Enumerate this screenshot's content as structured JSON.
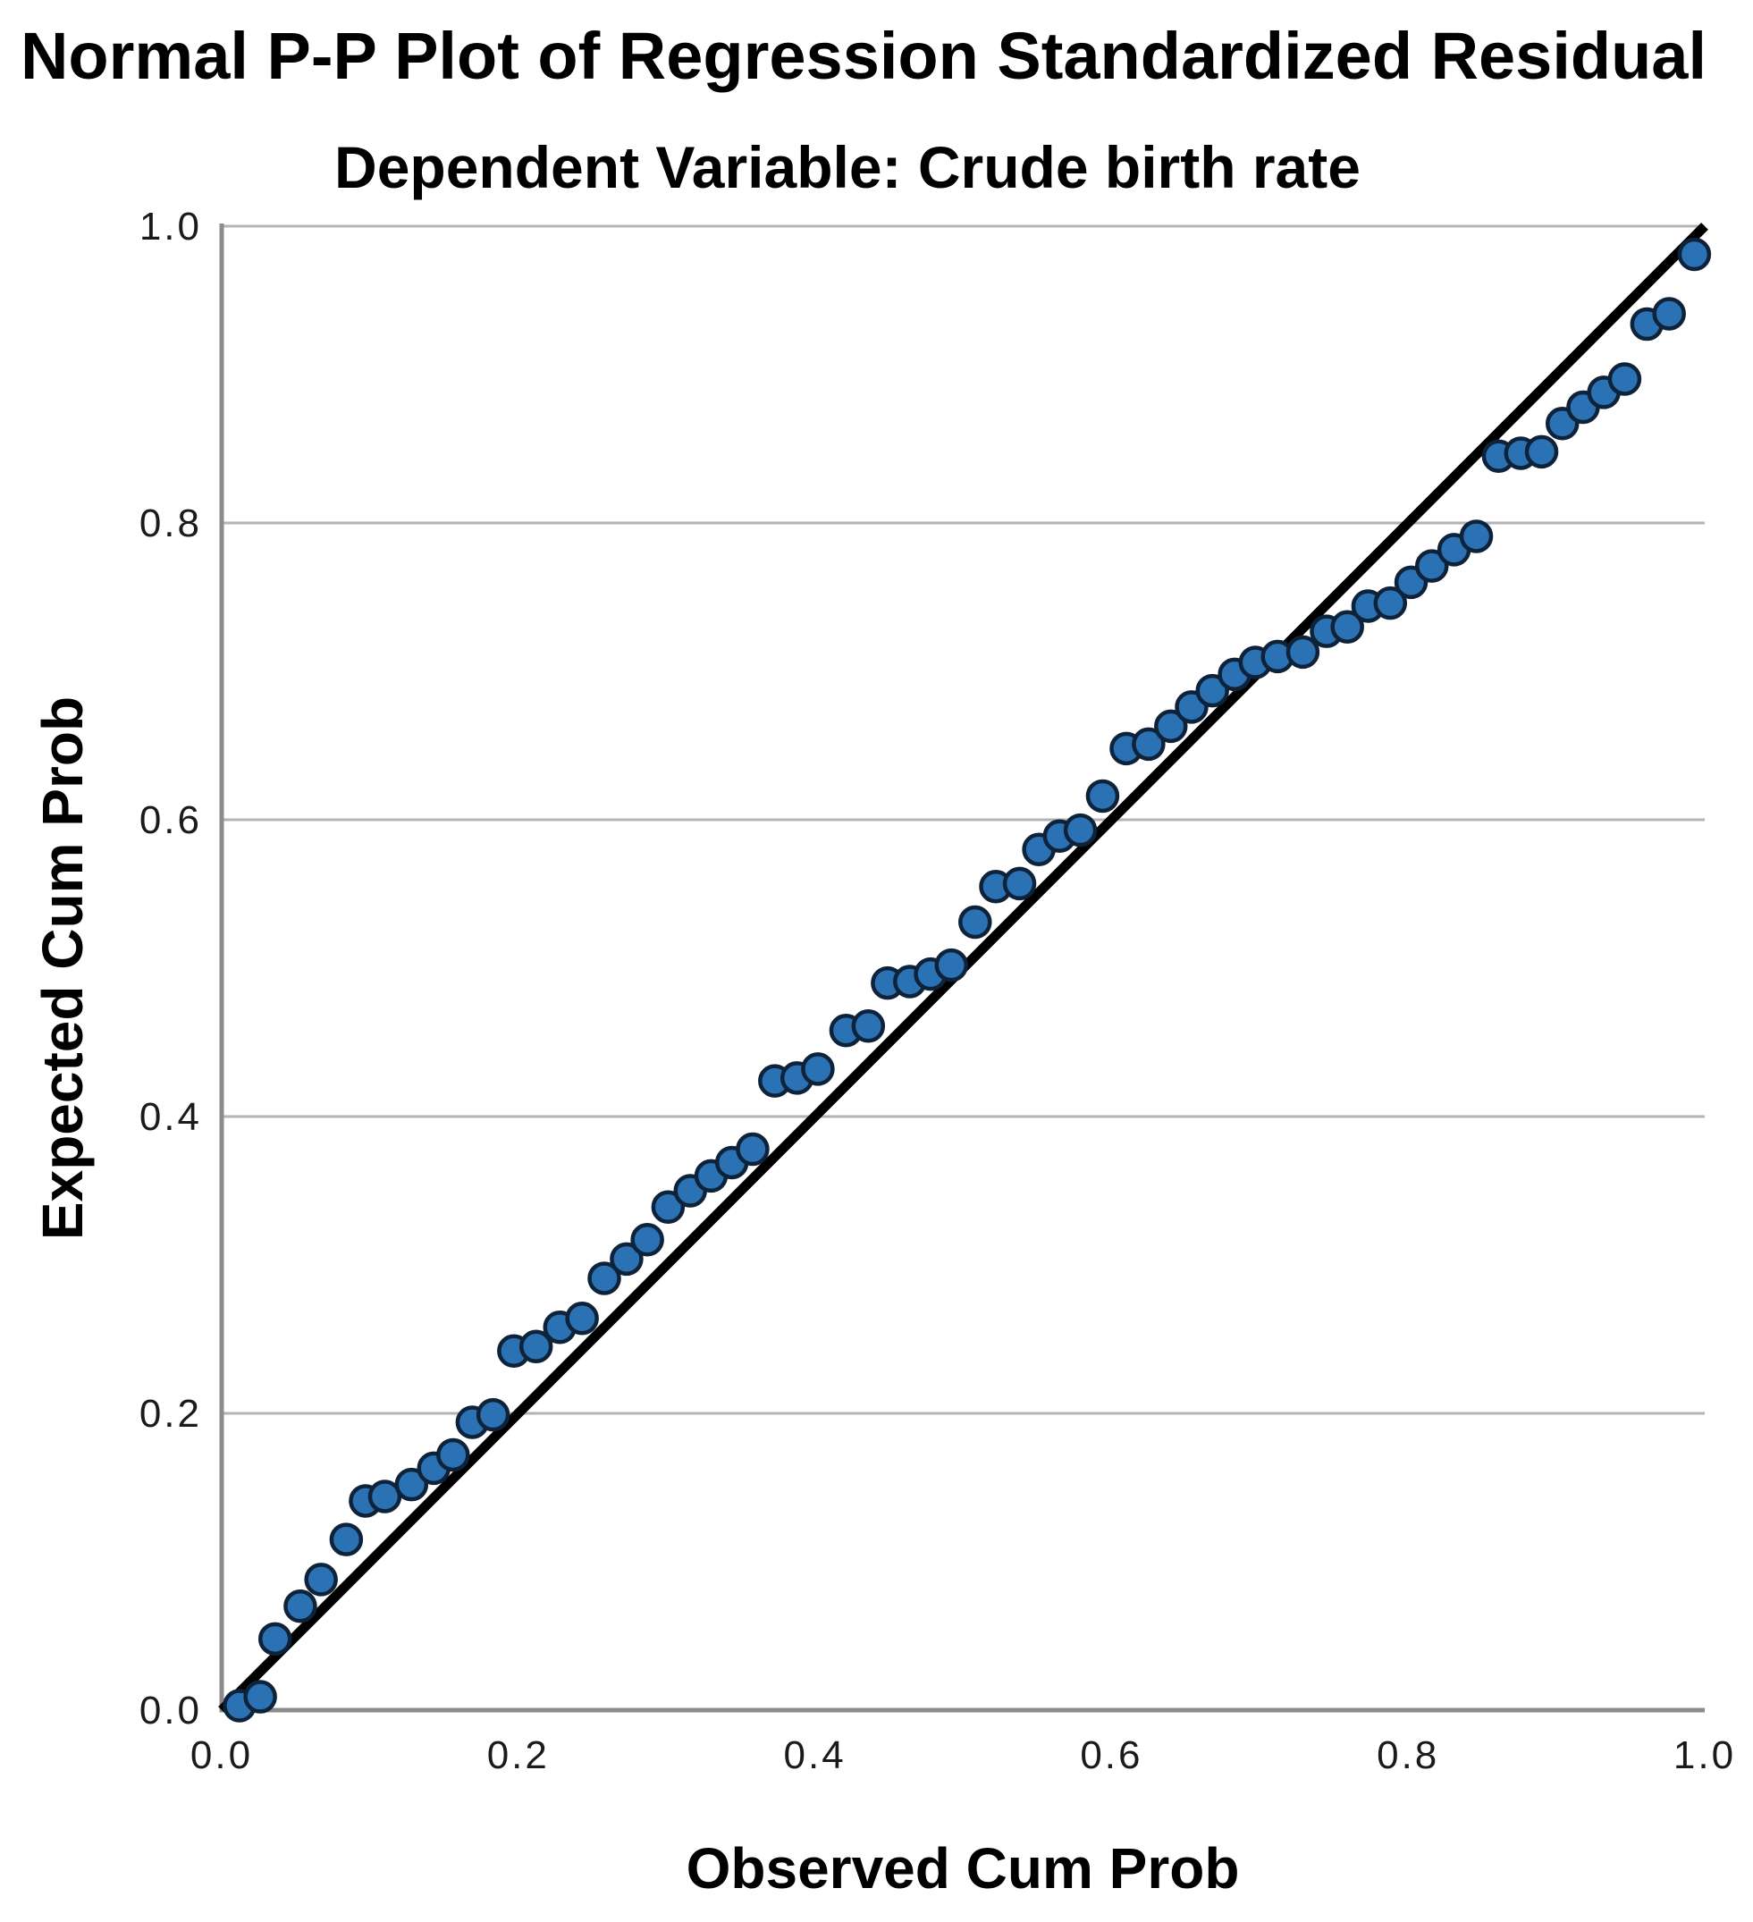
{
  "chart_data": {
    "type": "scatter",
    "title": "Normal P-P Plot of Regression Standardized Residual",
    "subtitle": "Dependent Variable: Crude birth rate",
    "xlabel": "Observed Cum Prob",
    "ylabel": "Expected Cum Prob",
    "xlim": [
      0.0,
      1.0
    ],
    "ylim": [
      0.0,
      1.0
    ],
    "x_ticks": [
      {
        "value": 0.0,
        "label": "0.0"
      },
      {
        "value": 0.2,
        "label": "0.2"
      },
      {
        "value": 0.4,
        "label": "0.4"
      },
      {
        "value": 0.6,
        "label": "0.6"
      },
      {
        "value": 0.8,
        "label": "0.8"
      },
      {
        "value": 1.0,
        "label": "1.0"
      }
    ],
    "y_ticks": [
      {
        "value": 0.0,
        "label": "0.0"
      },
      {
        "value": 0.2,
        "label": "0.2"
      },
      {
        "value": 0.4,
        "label": "0.4"
      },
      {
        "value": 0.6,
        "label": "0.6"
      },
      {
        "value": 0.8,
        "label": "0.8"
      },
      {
        "value": 1.0,
        "label": "1.0"
      }
    ],
    "grid": {
      "horizontal_lines_at": [
        0.2,
        0.4,
        0.6,
        0.8,
        1.0
      ],
      "vertical": false
    },
    "legend": "none",
    "reference_line": {
      "from": [
        0.0,
        0.0
      ],
      "to": [
        1.0,
        1.0
      ]
    },
    "series": [
      {
        "name": "Regression standardized residual",
        "marker": "circle",
        "points": [
          [
            0.012,
            0.003
          ],
          [
            0.026,
            0.009
          ],
          [
            0.036,
            0.048
          ],
          [
            0.053,
            0.07
          ],
          [
            0.067,
            0.088
          ],
          [
            0.084,
            0.115
          ],
          [
            0.097,
            0.141
          ],
          [
            0.11,
            0.144
          ],
          [
            0.128,
            0.152
          ],
          [
            0.143,
            0.163
          ],
          [
            0.156,
            0.172
          ],
          [
            0.169,
            0.194
          ],
          [
            0.183,
            0.199
          ],
          [
            0.197,
            0.242
          ],
          [
            0.212,
            0.245
          ],
          [
            0.228,
            0.258
          ],
          [
            0.243,
            0.264
          ],
          [
            0.258,
            0.291
          ],
          [
            0.273,
            0.304
          ],
          [
            0.287,
            0.317
          ],
          [
            0.301,
            0.339
          ],
          [
            0.316,
            0.35
          ],
          [
            0.33,
            0.36
          ],
          [
            0.344,
            0.369
          ],
          [
            0.358,
            0.378
          ],
          [
            0.373,
            0.424
          ],
          [
            0.388,
            0.426
          ],
          [
            0.402,
            0.432
          ],
          [
            0.421,
            0.458
          ],
          [
            0.436,
            0.461
          ],
          [
            0.449,
            0.49
          ],
          [
            0.464,
            0.491
          ],
          [
            0.478,
            0.496
          ],
          [
            0.492,
            0.502
          ],
          [
            0.508,
            0.531
          ],
          [
            0.522,
            0.555
          ],
          [
            0.538,
            0.557
          ],
          [
            0.551,
            0.58
          ],
          [
            0.565,
            0.589
          ],
          [
            0.579,
            0.593
          ],
          [
            0.594,
            0.616
          ],
          [
            0.61,
            0.648
          ],
          [
            0.625,
            0.651
          ],
          [
            0.64,
            0.663
          ],
          [
            0.654,
            0.676
          ],
          [
            0.668,
            0.687
          ],
          [
            0.683,
            0.698
          ],
          [
            0.697,
            0.706
          ],
          [
            0.712,
            0.71
          ],
          [
            0.729,
            0.713
          ],
          [
            0.745,
            0.727
          ],
          [
            0.759,
            0.73
          ],
          [
            0.773,
            0.744
          ],
          [
            0.788,
            0.746
          ],
          [
            0.802,
            0.76
          ],
          [
            0.816,
            0.771
          ],
          [
            0.831,
            0.782
          ],
          [
            0.846,
            0.791
          ],
          [
            0.861,
            0.845
          ],
          [
            0.876,
            0.847
          ],
          [
            0.89,
            0.848
          ],
          [
            0.904,
            0.867
          ],
          [
            0.918,
            0.878
          ],
          [
            0.932,
            0.888
          ],
          [
            0.946,
            0.897
          ],
          [
            0.961,
            0.934
          ],
          [
            0.976,
            0.941
          ],
          [
            0.993,
            0.981
          ]
        ]
      }
    ],
    "colors": {
      "point_fill": "#2b72b4",
      "point_stroke": "#0e2239",
      "reference_line": "#000000",
      "gridline": "#b3b3b3",
      "axis_line": "#8c8c8c",
      "text": "#000000",
      "background": "#ffffff"
    }
  }
}
